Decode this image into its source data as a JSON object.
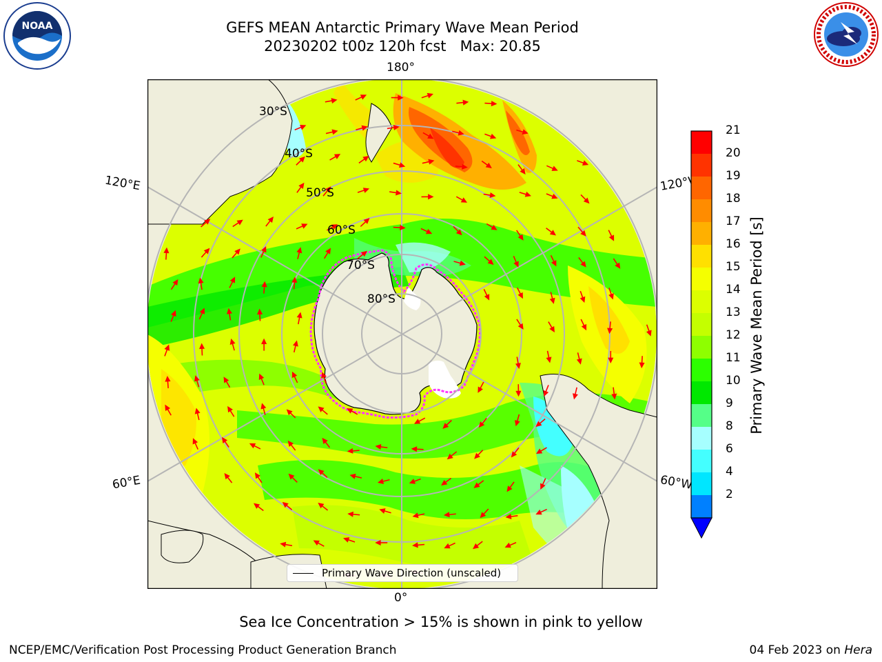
{
  "title": {
    "line1": "GEFS MEAN Antarctic Primary Wave Mean Period",
    "line2": "20230202 t00z 120h fcst   Max: 20.85"
  },
  "logos": {
    "left": {
      "icon": "noaa-logo-icon",
      "text": "NOAA"
    },
    "right": {
      "icon": "national-weather-service-logo-icon"
    }
  },
  "map": {
    "projection": "south-polar-stereographic",
    "longitude_labels": {
      "top": "180°",
      "bottom": "0°",
      "left_upper": "120°E",
      "left_lower": "60°E",
      "right_upper": "120°W",
      "right_lower": "60°W"
    },
    "latitude_labels": [
      "30°S",
      "40°S",
      "50°S",
      "60°S",
      "70°S",
      "80°S"
    ],
    "arrow_color": "#ff0000",
    "land_color": "#efeedc",
    "sea_ice_color": "#ff33ff"
  },
  "legend": {
    "label": "Primary Wave Direction (unscaled)"
  },
  "colorbar": {
    "label": "Primary Wave Mean Period [s]",
    "ticks": [
      "21",
      "20",
      "19",
      "18",
      "17",
      "16",
      "15",
      "14",
      "13",
      "12",
      "11",
      "10",
      "9",
      "8",
      "6",
      "4",
      "2"
    ],
    "colors": [
      "#ff0000",
      "#ff3300",
      "#ff6600",
      "#ff8c00",
      "#ffb000",
      "#ffe000",
      "#f5ff00",
      "#dcff00",
      "#c4ff00",
      "#8eff00",
      "#2cff00",
      "#00e800",
      "#55ff88",
      "#a6ffff",
      "#44ffff",
      "#00e6ff",
      "#0080ff"
    ],
    "under_color": "#0000ff"
  },
  "caption": "Sea Ice Concentration > 15% is shown in pink to yellow",
  "footer": {
    "left": "NCEP/EMC/Verification Post Processing Product Generation Branch",
    "right_date": "04 Feb 2023 on ",
    "right_host": "Hera"
  }
}
